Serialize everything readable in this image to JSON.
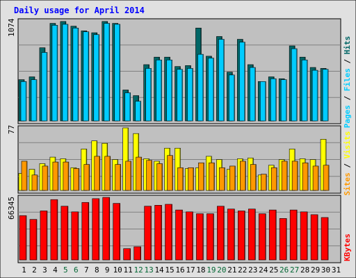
{
  "title": "Daily usage for April 2014",
  "colors": {
    "hits": "#006666",
    "files": "#00ccff",
    "pages": "#00ccff",
    "visits": "#ffff00",
    "sites": "#ff9900",
    "kbytes": "#ff0000",
    "title": "#0000ff",
    "weekend_day": "#006633",
    "weekday": "#000000",
    "panel_bg": "#c0c0c0",
    "frame_bg": "#e0e0e0"
  },
  "chart_data": [
    {
      "type": "bar",
      "name": "hits-files-pages",
      "categories": [
        "1",
        "2",
        "3",
        "4",
        "5",
        "6",
        "7",
        "8",
        "9",
        "10",
        "11",
        "12",
        "13",
        "14",
        "15",
        "16",
        "17",
        "18",
        "19",
        "20",
        "21",
        "22",
        "23",
        "24",
        "25",
        "26",
        "27",
        "28",
        "29",
        "30",
        "31"
      ],
      "ymax_label": "1074",
      "ylim": [
        0,
        1074
      ],
      "legend": [
        "Pages",
        "Files",
        "Hits"
      ],
      "series": [
        {
          "name": "Hits",
          "values": [
            440,
            470,
            780,
            1040,
            1060,
            1010,
            960,
            940,
            1060,
            1040,
            330,
            270,
            600,
            680,
            680,
            580,
            590,
            990,
            690,
            900,
            520,
            870,
            600,
            420,
            470,
            450,
            800,
            680,
            570,
            560,
            0
          ]
        },
        {
          "name": "Files",
          "values": [
            420,
            440,
            730,
            1020,
            1030,
            990,
            950,
            920,
            1040,
            1030,
            300,
            210,
            560,
            650,
            650,
            550,
            560,
            710,
            670,
            870,
            490,
            840,
            570,
            420,
            450,
            440,
            770,
            650,
            540,
            550,
            0
          ]
        },
        {
          "name": "Pages",
          "values": [
            0,
            0,
            0,
            0,
            0,
            0,
            0,
            0,
            0,
            0,
            0,
            0,
            0,
            0,
            0,
            0,
            0,
            0,
            0,
            0,
            0,
            0,
            0,
            0,
            0,
            0,
            0,
            0,
            0,
            0,
            0
          ]
        }
      ]
    },
    {
      "type": "bar",
      "name": "visits-sites",
      "categories": [
        "1",
        "2",
        "3",
        "4",
        "5",
        "6",
        "7",
        "8",
        "9",
        "10",
        "11",
        "12",
        "13",
        "14",
        "15",
        "16",
        "17",
        "18",
        "19",
        "20",
        "21",
        "22",
        "23",
        "24",
        "25",
        "26",
        "27",
        "28",
        "29",
        "30",
        "31"
      ],
      "ymax_label": "77",
      "ylim": [
        0,
        77
      ],
      "legend": [
        "Sites",
        "Visits"
      ],
      "series": [
        {
          "name": "Visits",
          "values": [
            21,
            26,
            33,
            41,
            39,
            28,
            51,
            61,
            58,
            38,
            77,
            70,
            39,
            36,
            52,
            52,
            27,
            28,
            42,
            38,
            26,
            39,
            40,
            19,
            31,
            38,
            51,
            39,
            38,
            63,
            0
          ]
        },
        {
          "name": "Sites",
          "values": [
            36,
            19,
            30,
            35,
            35,
            27,
            32,
            42,
            42,
            32,
            36,
            41,
            37,
            33,
            43,
            28,
            28,
            34,
            34,
            28,
            30,
            36,
            32,
            20,
            28,
            36,
            36,
            34,
            30,
            31,
            0
          ]
        }
      ]
    },
    {
      "type": "bar",
      "name": "kbytes",
      "categories": [
        "1",
        "2",
        "3",
        "4",
        "5",
        "6",
        "7",
        "8",
        "9",
        "10",
        "11",
        "12",
        "13",
        "14",
        "15",
        "16",
        "17",
        "18",
        "19",
        "20",
        "21",
        "22",
        "23",
        "24",
        "25",
        "26",
        "27",
        "28",
        "29",
        "30",
        "31"
      ],
      "ymax_label": "66345",
      "ylim": [
        0,
        66345
      ],
      "legend": [
        "KBytes"
      ],
      "series": [
        {
          "name": "KBytes",
          "values": [
            47000,
            43000,
            52000,
            64000,
            57000,
            51000,
            61000,
            65000,
            66345,
            60000,
            12000,
            14000,
            57000,
            58000,
            59000,
            53000,
            51000,
            49000,
            49000,
            57000,
            54000,
            52000,
            54000,
            49000,
            53000,
            44000,
            53000,
            51000,
            48000,
            45000,
            0
          ]
        }
      ]
    }
  ]
}
